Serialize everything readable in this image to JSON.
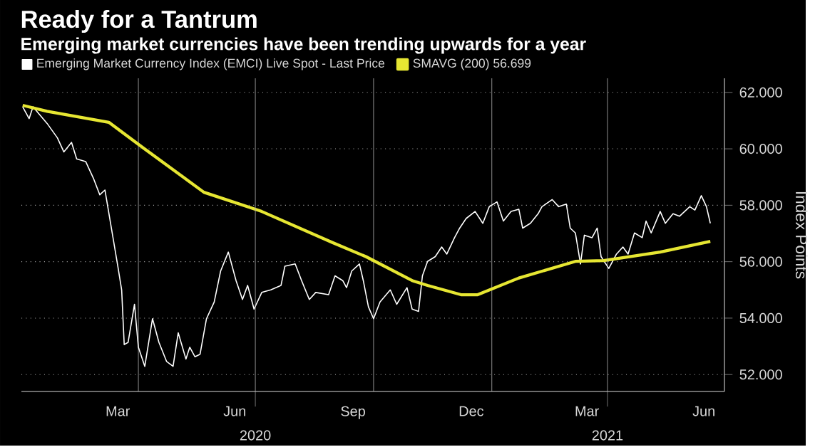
{
  "chart_data": {
    "type": "line",
    "title": "Ready for a Tantrum",
    "subtitle": "Emerging market currencies have been trending upwards for a year",
    "ylabel": "Index Points",
    "xlim": [
      "2020-01-01",
      "2021-07-01"
    ],
    "ylim": [
      51.4,
      62.5
    ],
    "xticks": [
      {
        "value": "2020-03-16",
        "label": "Mar"
      },
      {
        "value": "2020-04-01",
        "label": null
      },
      {
        "value": "2020-06-15",
        "label": "Jun"
      },
      {
        "value": "2020-09-15",
        "label": "Sep"
      },
      {
        "value": "2020-10-01",
        "label": null
      },
      {
        "value": "2020-12-16",
        "label": "Dec"
      },
      {
        "value": "2021-01-01",
        "label": null
      },
      {
        "value": "2021-03-16",
        "label": "Mar"
      },
      {
        "value": "2021-06-15",
        "label": "Jun"
      }
    ],
    "x2lim": [
      "2020-01-01",
      "2021-07-01"
    ],
    "x2ticks": [
      {
        "value": "2020-07-01",
        "label": "2020"
      },
      {
        "value": "2021-04-01",
        "label": "2021"
      }
    ],
    "yticks": [
      {
        "value": 52,
        "label": "52.000"
      },
      {
        "value": 54,
        "label": "54.000"
      },
      {
        "value": 56,
        "label": "56.000"
      },
      {
        "value": 58,
        "label": "58.000"
      },
      {
        "value": 60,
        "label": "60.000"
      },
      {
        "value": 62,
        "label": "62.000"
      }
    ],
    "grid": true,
    "legend": "top left",
    "line_style": "solid",
    "series": [
      {
        "name": "Emerging Market Currency Index (EMCI) Live Spot - Last Price",
        "color": "#ffffff",
        "x": [
          "2020-01-02",
          "2020-01-07",
          "2020-01-10",
          "2020-01-21",
          "2020-01-29",
          "2020-02-03",
          "2020-02-09",
          "2020-02-13",
          "2020-02-20",
          "2020-02-26",
          "2020-03-02",
          "2020-03-06",
          "2020-03-11",
          "2020-03-16",
          "2020-03-19",
          "2020-03-21",
          "2020-03-24",
          "2020-03-29",
          "2020-04-01",
          "2020-04-06",
          "2020-04-12",
          "2020-04-17",
          "2020-04-23",
          "2020-04-28",
          "2020-05-02",
          "2020-05-08",
          "2020-05-11",
          "2020-05-15",
          "2020-05-19",
          "2020-05-24",
          "2020-05-30",
          "2020-06-04",
          "2020-06-10",
          "2020-06-16",
          "2020-06-21",
          "2020-06-25",
          "2020-06-30",
          "2020-07-06",
          "2020-07-13",
          "2020-07-21",
          "2020-07-24",
          "2020-08-01",
          "2020-08-06",
          "2020-08-12",
          "2020-08-17",
          "2020-08-27",
          "2020-09-01",
          "2020-09-07",
          "2020-09-10",
          "2020-09-14",
          "2020-09-20",
          "2020-09-23",
          "2020-09-27",
          "2020-10-01",
          "2020-10-06",
          "2020-10-14",
          "2020-10-19",
          "2020-10-27",
          "2020-10-31",
          "2020-11-05",
          "2020-11-08",
          "2020-11-12",
          "2020-11-18",
          "2020-11-23",
          "2020-11-27",
          "2020-12-03",
          "2020-12-07",
          "2020-12-12",
          "2020-12-19",
          "2020-12-25",
          "2020-12-30",
          "2021-01-05",
          "2021-01-10",
          "2021-01-16",
          "2021-01-22",
          "2021-01-25",
          "2021-01-31",
          "2021-02-06",
          "2021-02-09",
          "2021-02-17",
          "2021-02-22",
          "2021-02-28",
          "2021-03-03",
          "2021-03-07",
          "2021-03-11",
          "2021-03-14",
          "2021-03-20",
          "2021-03-24",
          "2021-03-27",
          "2021-04-02",
          "2021-04-08",
          "2021-04-13",
          "2021-04-17",
          "2021-04-22",
          "2021-04-28",
          "2021-05-01",
          "2021-05-05",
          "2021-05-12",
          "2021-05-16",
          "2021-05-22",
          "2021-05-27",
          "2021-06-04",
          "2021-06-08",
          "2021-06-13",
          "2021-06-17",
          "2021-06-20"
        ],
        "values": [
          61.49,
          61.07,
          61.49,
          60.9,
          60.39,
          59.89,
          60.23,
          59.64,
          59.55,
          58.96,
          58.37,
          58.54,
          57.19,
          55.84,
          55.0,
          53.06,
          53.14,
          54.49,
          52.97,
          52.29,
          53.98,
          53.14,
          52.46,
          52.29,
          53.48,
          52.55,
          52.97,
          52.63,
          52.72,
          53.98,
          54.57,
          55.67,
          56.34,
          55.33,
          54.66,
          55.16,
          54.32,
          54.91,
          55.0,
          55.16,
          55.84,
          55.92,
          55.33,
          54.66,
          54.91,
          54.83,
          55.5,
          55.33,
          55.08,
          55.67,
          55.92,
          55.33,
          54.4,
          53.98,
          54.57,
          55.0,
          54.49,
          55.08,
          54.32,
          54.24,
          55.5,
          56.01,
          56.18,
          56.52,
          56.27,
          56.85,
          57.19,
          57.53,
          57.78,
          57.36,
          57.95,
          58.12,
          57.44,
          57.78,
          57.86,
          57.19,
          57.36,
          57.7,
          57.95,
          58.2,
          57.95,
          58.04,
          57.19,
          57.02,
          55.92,
          56.94,
          56.85,
          57.19,
          56.18,
          55.76,
          56.27,
          56.52,
          56.27,
          57.02,
          56.85,
          57.44,
          57.02,
          57.78,
          57.36,
          57.7,
          57.61,
          57.95,
          57.83,
          58.34,
          57.95,
          57.36
        ]
      },
      {
        "name": "SMAVG (200) 56.699",
        "color": "#e6e632",
        "x": [
          "2020-01-02",
          "2020-01-21",
          "2020-03-09",
          "2020-04-04",
          "2020-05-22",
          "2020-07-06",
          "2020-08-30",
          "2020-09-25",
          "2020-10-31",
          "2020-11-12",
          "2020-12-08",
          "2020-12-21",
          "2021-01-22",
          "2021-03-07",
          "2021-03-29",
          "2021-05-12",
          "2021-06-20"
        ],
        "values": [
          61.54,
          61.33,
          60.94,
          60.06,
          58.46,
          57.78,
          56.68,
          56.18,
          55.33,
          55.16,
          54.83,
          54.83,
          55.42,
          56.01,
          56.04,
          56.34,
          56.72
        ]
      }
    ]
  }
}
